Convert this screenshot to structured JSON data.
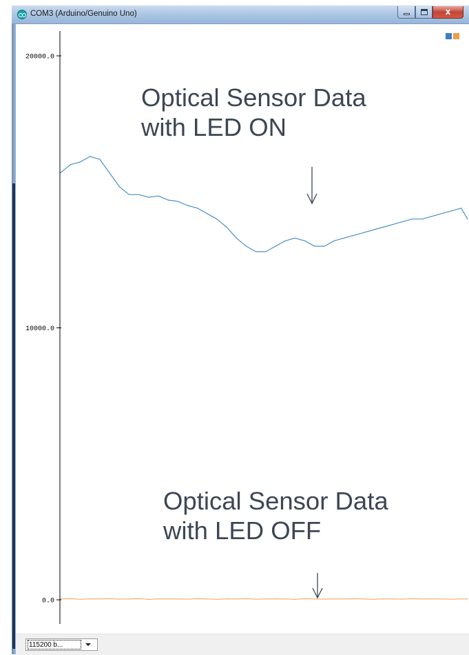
{
  "window": {
    "title": "COM3 (Arduino/Genuino Uno)",
    "icon": "arduino-logo-icon",
    "controls": {
      "minimize": "minimize-icon",
      "maximize": "maximize-icon",
      "close_label": "x"
    }
  },
  "colors": {
    "series_on": "#4a8fc4",
    "series_off": "#f2a15c",
    "axis": "#000000",
    "annotation": "#3c4654",
    "legend_1": "#3a7fc1",
    "legend_2": "#f39b4a"
  },
  "annotations": {
    "led_on": "Optical Sensor Data\nwith LED ON",
    "led_off": "Optical Sensor Data\nwith LED OFF"
  },
  "bottom_bar": {
    "baud_select_value": "115200 b..."
  },
  "chart_data": {
    "type": "line",
    "title": "",
    "xlabel": "",
    "ylabel": "",
    "ylim": [
      0,
      20000
    ],
    "yticks": [
      {
        "value": 20000,
        "label": "20000.0"
      },
      {
        "value": 10000,
        "label": "10000.0"
      },
      {
        "value": 0,
        "label": "0.0"
      }
    ],
    "grid": false,
    "legend": "top-right",
    "x": [
      0,
      12,
      24,
      36,
      48,
      60,
      72,
      84,
      96,
      108,
      120,
      132,
      144,
      156,
      168,
      180,
      192,
      204,
      216,
      228,
      240,
      252,
      264,
      276,
      288,
      300,
      312,
      324,
      336,
      348,
      360,
      372,
      384,
      396,
      408,
      420,
      432,
      444,
      456,
      468,
      480,
      492,
      500
    ],
    "series": [
      {
        "name": "",
        "color": "#4a8fc4",
        "values": [
          15700,
          16000,
          16100,
          16300,
          16200,
          15700,
          15200,
          14900,
          14900,
          14800,
          14850,
          14700,
          14650,
          14500,
          14400,
          14200,
          14000,
          13700,
          13300,
          13000,
          12800,
          12800,
          13000,
          13200,
          13300,
          13200,
          13000,
          13000,
          13200,
          13300,
          13400,
          13500,
          13600,
          13700,
          13800,
          13900,
          14000,
          14000,
          14100,
          14200,
          14300,
          14400,
          14000
        ]
      },
      {
        "name": "",
        "color": "#f2a15c",
        "values": [
          30,
          40,
          20,
          35,
          30,
          45,
          25,
          30,
          40,
          20,
          30,
          35,
          30,
          25,
          40,
          30,
          20,
          35,
          30,
          40,
          25,
          30,
          35,
          30,
          20,
          40,
          30,
          25,
          35,
          30,
          40,
          30,
          20,
          35,
          30,
          25,
          40,
          30,
          35,
          30,
          25,
          30,
          30
        ]
      }
    ]
  }
}
